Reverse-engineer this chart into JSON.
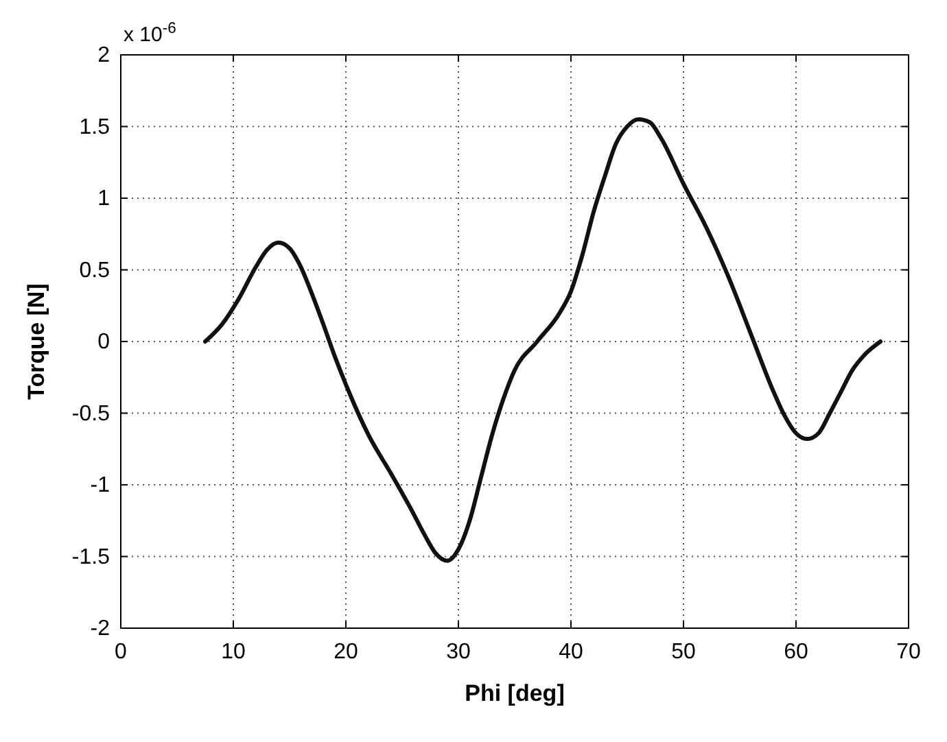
{
  "chart_data": {
    "type": "line",
    "xlabel": "Phi [deg]",
    "ylabel": "Torque [N]",
    "annotations": [
      "x 10$^{-6}$"
    ],
    "x": [
      7.5,
      9,
      10.5,
      12,
      13,
      14,
      15,
      16,
      17,
      18,
      19,
      20,
      22,
      24,
      26,
      27,
      28,
      29,
      30,
      31,
      32,
      33,
      34,
      35,
      37,
      39,
      40,
      41,
      42,
      43,
      44,
      45,
      46,
      47,
      48,
      50,
      52,
      54,
      56,
      58,
      59,
      60,
      61,
      62,
      63,
      64,
      65,
      66,
      67.5
    ],
    "series": [
      {
        "color": "#111111",
        "values": [
          0,
          0.12,
          0.3,
          0.52,
          0.64,
          0.69,
          0.65,
          0.52,
          0.33,
          0.12,
          -0.1,
          -0.3,
          -0.65,
          -0.92,
          -1.2,
          -1.35,
          -1.48,
          -1.53,
          -1.45,
          -1.25,
          -0.95,
          -0.65,
          -0.4,
          -0.2,
          0,
          0.2,
          0.35,
          0.6,
          0.9,
          1.15,
          1.38,
          1.5,
          1.55,
          1.53,
          1.42,
          1.1,
          0.8,
          0.45,
          0.05,
          -0.35,
          -0.52,
          -0.64,
          -0.68,
          -0.64,
          -0.5,
          -0.35,
          -0.2,
          -0.1,
          0
        ]
      }
    ],
    "xlim": [
      0,
      70
    ],
    "xticks": [
      0,
      10,
      20,
      30,
      40,
      50,
      60,
      70
    ],
    "ylim": [
      -2,
      2
    ],
    "yticks": [
      -2,
      -1.5,
      -1,
      -0.5,
      0,
      0.5,
      1,
      1.5,
      2
    ],
    "grid": true,
    "marker": "none",
    "line_style": "solid"
  }
}
